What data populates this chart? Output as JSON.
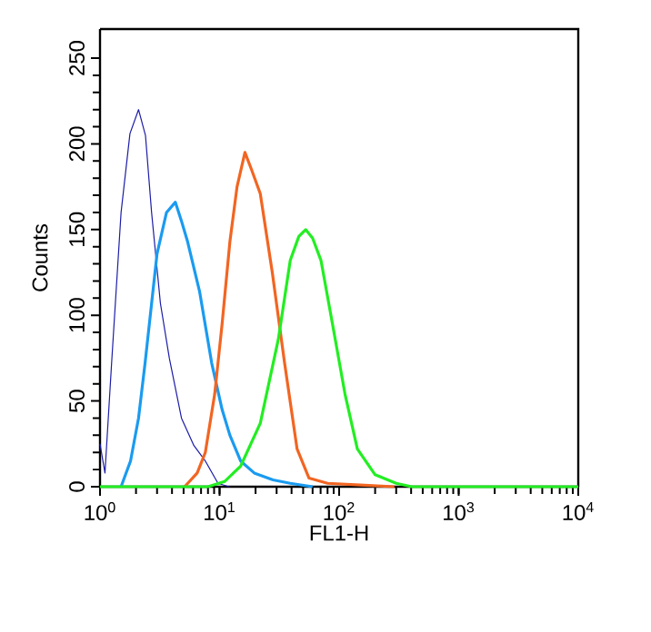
{
  "chart_data": {
    "type": "line",
    "xlabel": "FL1-H",
    "ylabel": "Counts",
    "log": "x",
    "xlim": [
      1,
      10000
    ],
    "ylim": [
      0,
      267
    ],
    "xticks": [
      {
        "value": 1,
        "label": "10$^{0}$"
      },
      {
        "value": 10,
        "label": "10$^{1}$"
      },
      {
        "value": 100,
        "label": "10$^{2}$"
      },
      {
        "value": 1000,
        "label": "10$^{3}$"
      },
      {
        "value": 10000,
        "label": "10$^{4}$"
      }
    ],
    "yticks": [
      0,
      50,
      100,
      150,
      200,
      250
    ],
    "grid": false,
    "marker": "none",
    "line_style": "solid",
    "series": [
      {
        "color": "#1c1ca8",
        "x": [
          1,
          1.1,
          1.25,
          1.5,
          1.78,
          2.1,
          2.4,
          2.7,
          3.2,
          3.8,
          4.8,
          6.1,
          7.6,
          9.7,
          12
        ],
        "values": [
          25,
          8,
          72,
          160,
          206,
          220,
          205,
          160,
          107,
          75,
          40,
          24,
          15,
          2,
          0
        ]
      },
      {
        "color": "#1a9bf0",
        "x": [
          1.5,
          1.8,
          2.1,
          2.38,
          3.0,
          3.6,
          4.27,
          4.8,
          5.4,
          6.8,
          8.6,
          10.5,
          12.2,
          15,
          19.5,
          28,
          39,
          60
        ],
        "values": [
          0,
          15,
          40,
          72,
          136,
          160,
          166,
          155,
          143,
          114,
          72,
          45,
          30,
          15,
          8,
          4,
          2,
          0
        ]
      },
      {
        "color": "#f26522",
        "x": [
          5.1,
          6.5,
          7.6,
          9.1,
          10.5,
          12.2,
          14,
          16.3,
          18.5,
          21.9,
          27.6,
          35,
          44.5,
          56,
          80,
          150,
          290
        ],
        "values": [
          0,
          8,
          20,
          54,
          95,
          143,
          175,
          195,
          185,
          171,
          125,
          72,
          22,
          5,
          2,
          1,
          0
        ]
      },
      {
        "color": "#22ee22",
        "x": [
          1,
          8,
          11,
          15,
          21.9,
          31,
          39,
          46,
          52.5,
          60,
          70.5,
          89,
          112,
          142,
          200,
          300,
          405,
          10000
        ],
        "values": [
          0,
          0,
          3,
          12,
          37,
          86,
          132,
          146,
          150,
          145,
          132,
          93,
          54,
          22,
          7,
          2,
          0,
          0
        ]
      }
    ]
  }
}
